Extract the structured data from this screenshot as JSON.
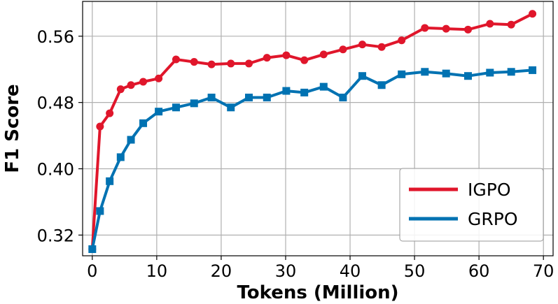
{
  "chart_data": {
    "type": "line",
    "title": "",
    "xlabel": "Tokens (Million)",
    "ylabel": "F1 Score",
    "xlim": [
      -1.5,
      71.5
    ],
    "ylim": [
      0.295,
      0.602
    ],
    "xticks": [
      0,
      10,
      20,
      30,
      40,
      50,
      60,
      70
    ],
    "xtick_labels": [
      "0",
      "10",
      "20",
      "30",
      "40",
      "50",
      "60",
      "70"
    ],
    "yticks": [
      0.32,
      0.4,
      0.48,
      0.56
    ],
    "ytick_labels": [
      "0.32",
      "0.40",
      "0.48",
      "0.56"
    ],
    "grid": true,
    "legend_position": "bottom-right",
    "series": [
      {
        "name": "IGPO",
        "color": "#e0162b",
        "marker": "circle",
        "x": [
          0,
          1.2,
          2.7,
          4.4,
          6.0,
          7.9,
          10.3,
          13.0,
          15.8,
          18.5,
          21.5,
          24.3,
          27.1,
          30.1,
          32.9,
          35.9,
          38.9,
          41.9,
          44.9,
          48.0,
          51.6,
          54.9,
          58.3,
          61.7,
          65.0,
          68.3
        ],
        "y": [
          0.303,
          0.451,
          0.467,
          0.496,
          0.501,
          0.505,
          0.509,
          0.532,
          0.529,
          0.526,
          0.527,
          0.527,
          0.534,
          0.537,
          0.531,
          0.538,
          0.544,
          0.55,
          0.547,
          0.555,
          0.57,
          0.569,
          0.568,
          0.575,
          0.574,
          0.587
        ]
      },
      {
        "name": "GRPO",
        "color": "#0072b2",
        "marker": "square",
        "x": [
          0,
          1.2,
          2.7,
          4.4,
          6.0,
          7.9,
          10.3,
          13.0,
          15.8,
          18.5,
          21.5,
          24.3,
          27.1,
          30.1,
          32.9,
          35.9,
          38.9,
          41.9,
          44.9,
          48.0,
          51.6,
          54.9,
          58.3,
          61.7,
          65.0,
          68.3
        ],
        "y": [
          0.303,
          0.349,
          0.385,
          0.414,
          0.435,
          0.455,
          0.469,
          0.474,
          0.479,
          0.486,
          0.474,
          0.486,
          0.486,
          0.494,
          0.492,
          0.499,
          0.486,
          0.512,
          0.501,
          0.514,
          0.517,
          0.515,
          0.512,
          0.516,
          0.517,
          0.519
        ]
      }
    ]
  }
}
